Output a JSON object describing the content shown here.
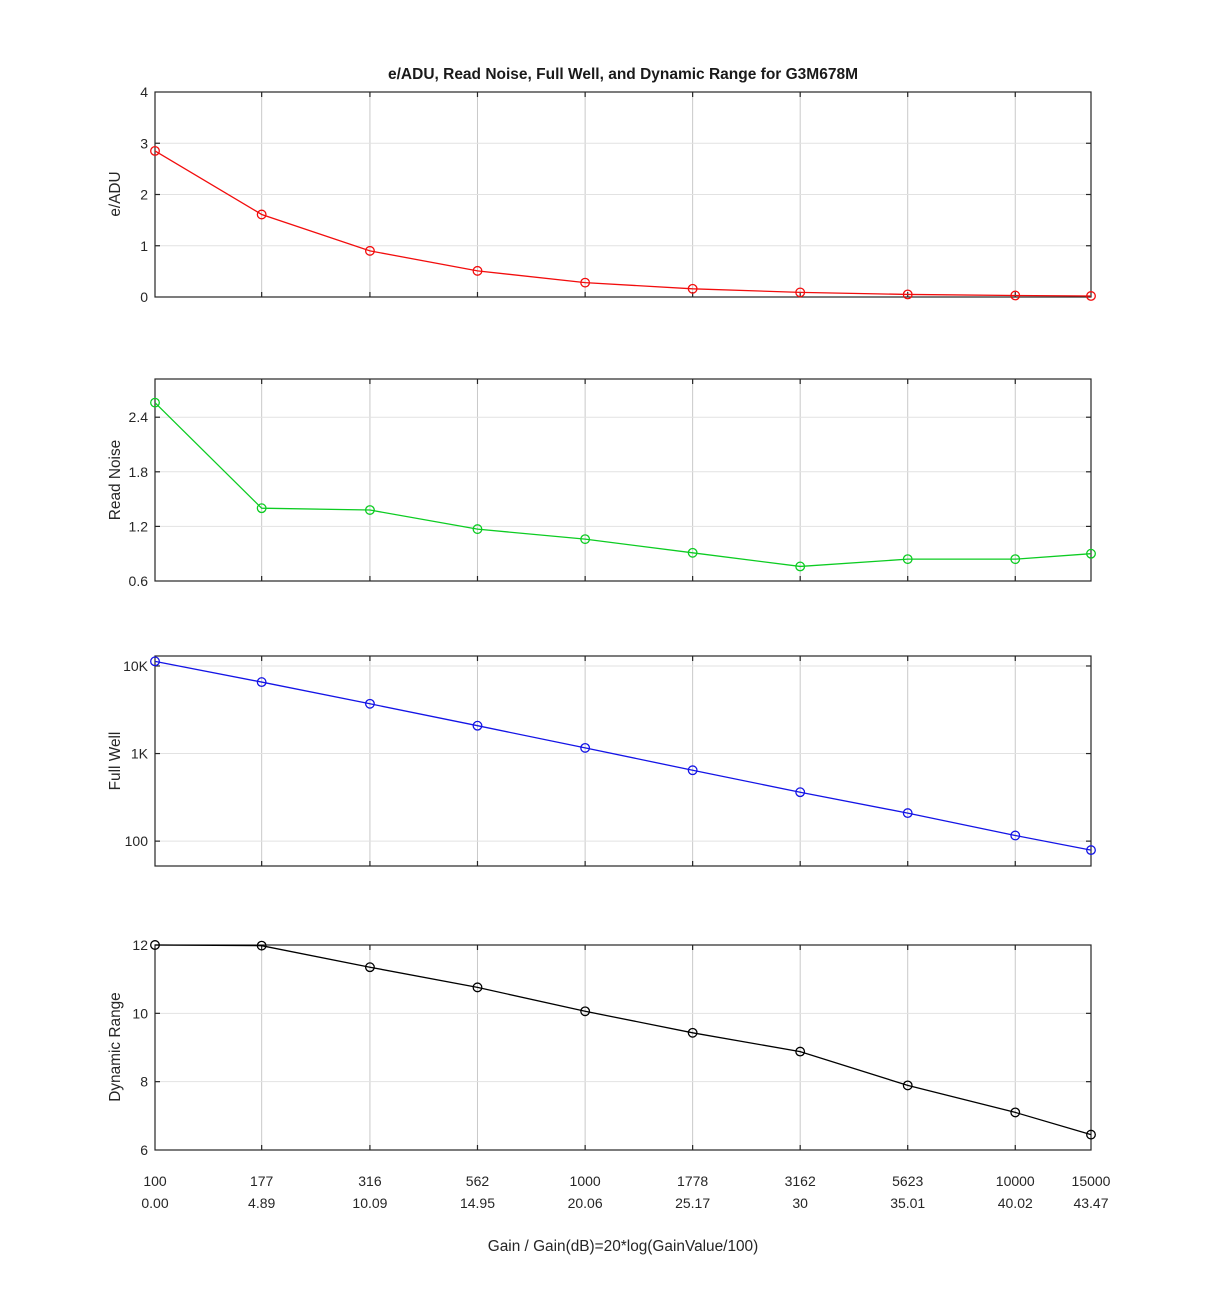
{
  "chart_data": {
    "type": "line",
    "title": "e/ADU, Read Noise, Full Well, and Dynamic Range for G3M678M",
    "xlabel": "Gain / Gain(dB)=20*log(GainValue/100)",
    "x_scale": "log",
    "x_gain": [
      100,
      177,
      316,
      562,
      1000,
      1778,
      3162,
      5623,
      10000,
      15000
    ],
    "x_gain_db_labels": [
      "0.00",
      "4.89",
      "10.09",
      "14.95",
      "20.06",
      "25.17",
      "30",
      "35.01",
      "40.02",
      "43.47"
    ],
    "grid": true,
    "legend": "none",
    "colors": {
      "axis": "#262626",
      "text": "#262626",
      "grid_vertical": "#c9c9c9",
      "grid_horizontal": "#e2e2e2",
      "background": "#ffffff"
    },
    "subplots": [
      {
        "ylabel": "e/ADU",
        "marker": "o",
        "color": "#f20d0d",
        "yscale": "linear",
        "ylim": [
          0,
          4
        ],
        "yticks": [
          {
            "v": 0,
            "label": "0"
          },
          {
            "v": 1,
            "label": "1"
          },
          {
            "v": 2,
            "label": "2"
          },
          {
            "v": 3,
            "label": "3"
          },
          {
            "v": 4,
            "label": "4"
          }
        ],
        "values": [
          2.85,
          1.61,
          0.9,
          0.51,
          0.28,
          0.16,
          0.09,
          0.05,
          0.03,
          0.02
        ]
      },
      {
        "ylabel": "Read Noise",
        "marker": "o",
        "color": "#0ccc22",
        "yscale": "linear",
        "ylim": [
          0.6,
          2.82
        ],
        "yticks": [
          {
            "v": 0.6,
            "label": "0.6"
          },
          {
            "v": 1.2,
            "label": "1.2"
          },
          {
            "v": 1.8,
            "label": "1.8"
          },
          {
            "v": 2.4,
            "label": "2.4"
          }
        ],
        "values": [
          2.56,
          1.4,
          1.38,
          1.17,
          1.06,
          0.91,
          0.76,
          0.84,
          0.84,
          0.9
        ]
      },
      {
        "ylabel": "Full Well",
        "marker": "o",
        "color": "#1414e6",
        "yscale": "log",
        "ylim": [
          52,
          13000
        ],
        "yticks": [
          {
            "v": 100,
            "label": "100"
          },
          {
            "v": 1000,
            "label": "1K"
          },
          {
            "v": 10000,
            "label": "10K"
          }
        ],
        "values": [
          11300,
          6550,
          3700,
          2080,
          1160,
          645,
          362,
          209,
          116,
          79
        ]
      },
      {
        "ylabel": "Dynamic Range",
        "marker": "o",
        "color": "#000000",
        "yscale": "linear",
        "ylim": [
          6,
          12
        ],
        "yticks": [
          {
            "v": 6,
            "label": "6"
          },
          {
            "v": 8,
            "label": "8"
          },
          {
            "v": 10,
            "label": "10"
          },
          {
            "v": 12,
            "label": "12"
          }
        ],
        "values": [
          12,
          11.98,
          11.35,
          10.76,
          10.06,
          9.43,
          8.88,
          7.89,
          7.1,
          6.45
        ]
      }
    ]
  }
}
